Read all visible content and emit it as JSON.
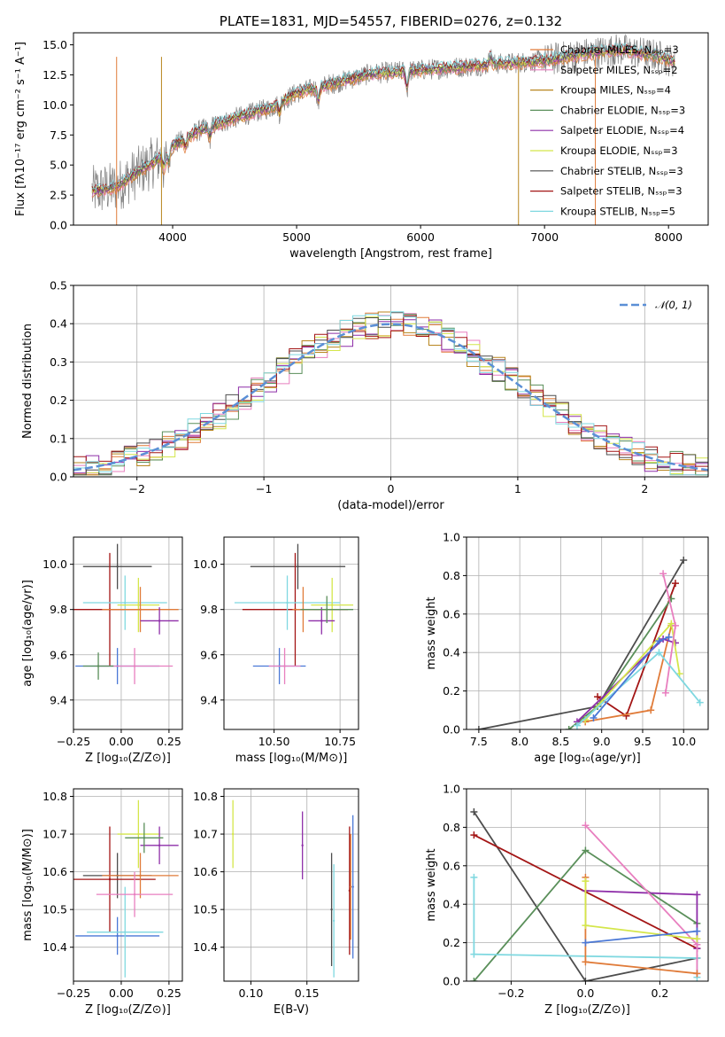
{
  "colors": {
    "chabrier_miles": "#e07b39",
    "salpeter_miles": "#e87fbf",
    "kroupa_miles": "#b8861f",
    "chabrier_elodie": "#5a8f5a",
    "salpeter_elodie": "#8e2ea8",
    "kroupa_elodie": "#d4e64a",
    "chabrier_stelib": "#4d4d4d",
    "salpeter_stelib": "#a31515",
    "kroupa_stelib": "#7fd8e0",
    "blue_extra": "#4a78d6",
    "normal": "#5b8fd6"
  },
  "chart_data": [
    {
      "id": "spectrum",
      "type": "line",
      "title": "PLATE=1831, MJD=54557, FIBERID=0276, z=0.132",
      "xlabel": "wavelength [Angstrom, rest frame]",
      "ylabel": "Flux [fλ10⁻¹⁷ erg cm⁻² s⁻¹ A⁻¹]",
      "xlim": [
        3200,
        8320
      ],
      "ylim": [
        0,
        16
      ],
      "xticks": [
        "4000",
        "5000",
        "6000",
        "7000",
        "8000"
      ],
      "yticks": [
        "0.0",
        "2.5",
        "5.0",
        "7.5",
        "10.0",
        "12.5",
        "15.0"
      ],
      "grid": false,
      "legend_position": "top-right",
      "continuum": [
        [
          3350,
          2.8
        ],
        [
          3550,
          3.2
        ],
        [
          3750,
          4.6
        ],
        [
          3900,
          5.6
        ],
        [
          4000,
          6.6
        ],
        [
          4200,
          7.8
        ],
        [
          4500,
          8.9
        ],
        [
          4800,
          9.8
        ],
        [
          5000,
          11.0
        ],
        [
          5300,
          11.8
        ],
        [
          5600,
          12.6
        ],
        [
          6000,
          12.9
        ],
        [
          6500,
          13.3
        ],
        [
          7000,
          13.7
        ],
        [
          7300,
          14.2
        ],
        [
          7600,
          14.6
        ],
        [
          7900,
          14.1
        ],
        [
          8050,
          13.6
        ]
      ],
      "legend": [
        "Chabrier MILES, Nₛₛₚ=3",
        "Salpeter MILES, Nₛₛₚ=2",
        "Kroupa MILES, Nₛₛₚ=4",
        "Chabrier ELODIE, Nₛₛₚ=3",
        "Salpeter ELODIE, Nₛₛₚ=4",
        "Kroupa ELODIE, Nₛₛₚ=3",
        "Chabrier STELIB, Nₛₛₚ=3",
        "Salpeter STELIB, Nₛₛₚ=3",
        "Kroupa STELIB, Nₛₛₚ=5"
      ]
    },
    {
      "id": "residuals",
      "type": "histogram",
      "xlabel": "(data-model)/error",
      "ylabel": "Normed distribution",
      "xlim": [
        -2.5,
        2.5
      ],
      "ylim": [
        0,
        0.5
      ],
      "xticks": [
        "−2",
        "−1",
        "0",
        "1",
        "2"
      ],
      "yticks": [
        "0.0",
        "0.1",
        "0.2",
        "0.3",
        "0.4",
        "0.5"
      ],
      "grid": true,
      "legend": [
        "𝒩(0, 1)"
      ],
      "legend_position": "top-right",
      "bin_width": 0.1
    },
    {
      "id": "age_vs_Z",
      "type": "scatter",
      "xlabel": "Z [log₁₀(Z/Z⊙)]",
      "ylabel": "age  [log₁₀(age/yr)]",
      "xlim": [
        -0.25,
        0.32
      ],
      "ylim": [
        9.27,
        10.12
      ],
      "xticks": [
        "−0.25",
        "0.00",
        "0.25"
      ],
      "yticks": [
        "9.4",
        "9.6",
        "9.8",
        "10.0"
      ],
      "grid": true,
      "points": [
        {
          "x": -0.02,
          "y": 9.99,
          "xerr": 0.18,
          "yerr": 0.1,
          "color": "#4d4d4d"
        },
        {
          "x": -0.06,
          "y": 9.8,
          "xerr": 0.24,
          "yerr": 0.25,
          "color": "#a31515"
        },
        {
          "x": -0.02,
          "y": 9.55,
          "xerr": 0.22,
          "yerr": 0.08,
          "color": "#4a78d6"
        },
        {
          "x": 0.02,
          "y": 9.83,
          "xerr": 0.22,
          "yerr": 0.12,
          "color": "#7fd8e0"
        },
        {
          "x": 0.09,
          "y": 9.82,
          "xerr": 0.11,
          "yerr": 0.12,
          "color": "#d4e64a"
        },
        {
          "x": 0.1,
          "y": 9.8,
          "xerr": 0.2,
          "yerr": 0.1,
          "color": "#e07b39"
        },
        {
          "x": 0.07,
          "y": 9.55,
          "xerr": 0.2,
          "yerr": 0.08,
          "color": "#e87fbf"
        },
        {
          "x": 0.2,
          "y": 9.75,
          "xerr": 0.1,
          "yerr": 0.06,
          "color": "#8e2ea8"
        },
        {
          "x": -0.12,
          "y": 9.55,
          "xerr": 0.08,
          "yerr": 0.06,
          "color": "#5a8f5a"
        }
      ]
    },
    {
      "id": "age_vs_mass",
      "type": "scatter",
      "xlabel": "mass [log₁₀(M/M⊙)]",
      "xlim": [
        10.31,
        10.82
      ],
      "ylim": [
        9.27,
        10.12
      ],
      "xticks": [
        "10.50",
        "10.75"
      ],
      "yticks": [
        "9.4",
        "9.6",
        "9.8",
        "10.0"
      ],
      "grid": true,
      "points": [
        {
          "x": 10.59,
          "y": 9.99,
          "xerr": 0.18,
          "yerr": 0.1,
          "color": "#4d4d4d"
        },
        {
          "x": 10.58,
          "y": 9.8,
          "xerr": 0.2,
          "yerr": 0.25,
          "color": "#a31515"
        },
        {
          "x": 10.52,
          "y": 9.55,
          "xerr": 0.1,
          "yerr": 0.08,
          "color": "#4a78d6"
        },
        {
          "x": 10.55,
          "y": 9.83,
          "xerr": 0.2,
          "yerr": 0.12,
          "color": "#7fd8e0"
        },
        {
          "x": 10.72,
          "y": 9.82,
          "xerr": 0.08,
          "yerr": 0.12,
          "color": "#d4e64a"
        },
        {
          "x": 10.61,
          "y": 9.8,
          "xerr": 0.04,
          "yerr": 0.1,
          "color": "#e07b39"
        },
        {
          "x": 10.54,
          "y": 9.55,
          "xerr": 0.06,
          "yerr": 0.08,
          "color": "#e87fbf"
        },
        {
          "x": 10.68,
          "y": 9.75,
          "xerr": 0.05,
          "yerr": 0.06,
          "color": "#8e2ea8"
        },
        {
          "x": 10.7,
          "y": 9.8,
          "xerr": 0.1,
          "yerr": 0.06,
          "color": "#5a8f5a"
        }
      ]
    },
    {
      "id": "mass_weight_vs_age",
      "type": "line",
      "xlabel": "age  [log₁₀(age/yr)]",
      "ylabel": "mass weight",
      "xlim": [
        7.35,
        10.3
      ],
      "ylim": [
        0,
        1.0
      ],
      "xticks": [
        "7.5",
        "8.0",
        "8.5",
        "9.0",
        "9.5",
        "10.0"
      ],
      "yticks": [
        "0.0",
        "0.2",
        "0.4",
        "0.6",
        "0.8",
        "1.0"
      ],
      "grid": true,
      "series": [
        {
          "color": "#4d4d4d",
          "points": [
            [
              7.5,
              0.0
            ],
            [
              8.95,
              0.12
            ],
            [
              10.0,
              0.88
            ]
          ]
        },
        {
          "color": "#a31515",
          "points": [
            [
              8.95,
              0.17
            ],
            [
              9.3,
              0.07
            ],
            [
              9.9,
              0.76
            ]
          ]
        },
        {
          "color": "#e07b39",
          "points": [
            [
              8.8,
              0.04
            ],
            [
              9.6,
              0.1
            ],
            [
              9.85,
              0.54
            ]
          ]
        },
        {
          "color": "#5a8f5a",
          "points": [
            [
              8.6,
              0.0
            ],
            [
              8.95,
              0.12
            ],
            [
              9.85,
              0.68
            ]
          ]
        },
        {
          "color": "#8e2ea8",
          "points": [
            [
              8.7,
              0.04
            ],
            [
              9.75,
              0.47
            ],
            [
              9.9,
              0.45
            ]
          ]
        },
        {
          "color": "#d4e64a",
          "points": [
            [
              8.8,
              0.05
            ],
            [
              9.85,
              0.55
            ],
            [
              9.95,
              0.29
            ]
          ]
        },
        {
          "color": "#e87fbf",
          "points": [
            [
              9.75,
              0.81
            ],
            [
              9.9,
              0.54
            ],
            [
              9.78,
              0.19
            ]
          ]
        },
        {
          "color": "#7fd8e0",
          "points": [
            [
              8.7,
              0.02
            ],
            [
              9.7,
              0.4
            ],
            [
              10.2,
              0.14
            ]
          ]
        },
        {
          "color": "#4a78d6",
          "points": [
            [
              8.9,
              0.06
            ],
            [
              9.7,
              0.46
            ],
            [
              9.82,
              0.48
            ]
          ]
        }
      ]
    },
    {
      "id": "mass_vs_Z",
      "type": "scatter",
      "xlabel": "Z [log₁₀(Z/Z⊙)]",
      "ylabel": "mass [log₁₀(M/M⊙)]",
      "xlim": [
        -0.25,
        0.32
      ],
      "ylim": [
        10.31,
        10.82
      ],
      "xticks": [
        "−0.25",
        "0.00",
        "0.25"
      ],
      "yticks": [
        "10.4",
        "10.5",
        "10.6",
        "10.7",
        "10.8"
      ],
      "grid": true,
      "points": [
        {
          "x": -0.02,
          "y": 10.59,
          "xerr": 0.18,
          "yerr": 0.06,
          "color": "#4d4d4d"
        },
        {
          "x": -0.06,
          "y": 10.58,
          "xerr": 0.24,
          "yerr": 0.14,
          "color": "#a31515"
        },
        {
          "x": -0.02,
          "y": 10.43,
          "xerr": 0.22,
          "yerr": 0.05,
          "color": "#4a78d6"
        },
        {
          "x": 0.02,
          "y": 10.44,
          "xerr": 0.2,
          "yerr": 0.12,
          "color": "#7fd8e0"
        },
        {
          "x": 0.09,
          "y": 10.7,
          "xerr": 0.11,
          "yerr": 0.09,
          "color": "#d4e64a"
        },
        {
          "x": 0.1,
          "y": 10.59,
          "xerr": 0.2,
          "yerr": 0.06,
          "color": "#e07b39"
        },
        {
          "x": 0.07,
          "y": 10.54,
          "xerr": 0.2,
          "yerr": 0.06,
          "color": "#e87fbf"
        },
        {
          "x": 0.2,
          "y": 10.67,
          "xerr": 0.1,
          "yerr": 0.05,
          "color": "#8e2ea8"
        },
        {
          "x": 0.12,
          "y": 10.69,
          "xerr": 0.1,
          "yerr": 0.04,
          "color": "#5a8f5a"
        }
      ]
    },
    {
      "id": "mass_vs_ebv",
      "type": "scatter",
      "xlabel": "E(B-V)",
      "xlim": [
        0.076,
        0.196
      ],
      "ylim": [
        10.31,
        10.82
      ],
      "xticks": [
        "0.10",
        "0.15"
      ],
      "yticks": [
        "10.4",
        "10.5",
        "10.6",
        "10.7",
        "10.8"
      ],
      "grid": true,
      "points": [
        {
          "x": 0.084,
          "y": 10.7,
          "yerr": 0.09,
          "color": "#d4e64a"
        },
        {
          "x": 0.146,
          "y": 10.67,
          "yerr": 0.09,
          "color": "#8e2ea8"
        },
        {
          "x": 0.172,
          "y": 10.5,
          "yerr": 0.15,
          "color": "#4d4d4d"
        },
        {
          "x": 0.174,
          "y": 10.47,
          "yerr": 0.15,
          "color": "#7fd8e0"
        },
        {
          "x": 0.188,
          "y": 10.55,
          "yerr": 0.17,
          "color": "#a31515"
        },
        {
          "x": 0.189,
          "y": 10.56,
          "yerr": 0.14,
          "color": "#e07b39"
        },
        {
          "x": 0.191,
          "y": 10.56,
          "yerr": 0.19,
          "color": "#4a78d6"
        }
      ]
    },
    {
      "id": "mass_weight_vs_Z",
      "type": "line",
      "xlabel": "Z [log₁₀(Z/Z⊙)]",
      "ylabel": "mass weight",
      "xlim": [
        -0.32,
        0.33
      ],
      "ylim": [
        0,
        1.0
      ],
      "xticks": [
        "−0.2",
        "0.0",
        "0.2"
      ],
      "yticks": [
        "0.0",
        "0.2",
        "0.4",
        "0.6",
        "0.8",
        "1.0"
      ],
      "grid": true,
      "series": [
        {
          "color": "#4d4d4d",
          "points": [
            [
              -0.3,
              0.88
            ],
            [
              0.0,
              0.0
            ],
            [
              0.3,
              0.12
            ]
          ]
        },
        {
          "color": "#a31515",
          "points": [
            [
              -0.3,
              0.76
            ],
            [
              0.3,
              0.17
            ]
          ]
        },
        {
          "color": "#5a8f5a",
          "points": [
            [
              -0.3,
              0.0
            ],
            [
              0.0,
              0.68
            ],
            [
              0.3,
              0.3
            ]
          ]
        },
        {
          "color": "#7fd8e0",
          "points": [
            [
              -0.3,
              0.54
            ],
            [
              -0.3,
              0.14
            ],
            [
              0.3,
              0.12
            ],
            [
              0.3,
              0.02
            ]
          ]
        },
        {
          "color": "#8e2ea8",
          "points": [
            [
              0.0,
              0.47
            ],
            [
              0.3,
              0.45
            ],
            [
              0.3,
              0.17
            ]
          ]
        },
        {
          "color": "#e87fbf",
          "points": [
            [
              0.0,
              0.81
            ],
            [
              0.3,
              0.19
            ],
            [
              0.3,
              0.04
            ]
          ]
        },
        {
          "color": "#e07b39",
          "points": [
            [
              0.0,
              0.54
            ],
            [
              0.0,
              0.1
            ],
            [
              0.3,
              0.04
            ]
          ]
        },
        {
          "color": "#d4e64a",
          "points": [
            [
              0.0,
              0.52
            ],
            [
              0.0,
              0.29
            ],
            [
              0.3,
              0.22
            ]
          ]
        },
        {
          "color": "#4a78d6",
          "points": [
            [
              0.0,
              0.2
            ],
            [
              0.3,
              0.26
            ]
          ]
        }
      ]
    }
  ]
}
